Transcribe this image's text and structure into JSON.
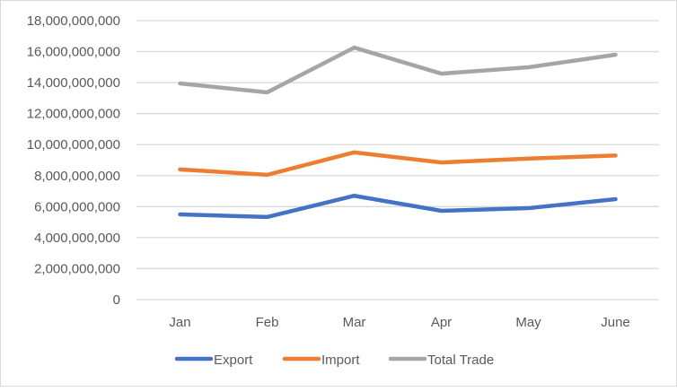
{
  "chart_data": {
    "type": "line",
    "title": "",
    "xlabel": "",
    "ylabel": "",
    "categories": [
      "Jan",
      "Feb",
      "Mar",
      "Apr",
      "May",
      "June"
    ],
    "ylim": [
      0,
      18000000000
    ],
    "yticks": [
      0,
      2000000000,
      4000000000,
      6000000000,
      8000000000,
      10000000000,
      12000000000,
      14000000000,
      16000000000,
      18000000000
    ],
    "ytick_labels": [
      "0",
      "2,000,000,000",
      "4,000,000,000",
      "6,000,000,000",
      "8,000,000,000",
      "10,000,000,000",
      "12,000,000,000",
      "14,000,000,000",
      "16,000,000,000",
      "18,000,000,000"
    ],
    "grid": true,
    "legend_position": "bottom",
    "series": [
      {
        "name": "Export",
        "color": "#4472C4",
        "values": [
          5500000000,
          5330000000,
          6700000000,
          5730000000,
          5900000000,
          6480000000
        ]
      },
      {
        "name": "Import",
        "color": "#ED7D31",
        "values": [
          8400000000,
          8050000000,
          9500000000,
          8850000000,
          9100000000,
          9300000000
        ]
      },
      {
        "name": "Total Trade",
        "color": "#A5A5A5",
        "values": [
          13950000000,
          13370000000,
          16260000000,
          14580000000,
          14990000000,
          15800000000
        ]
      }
    ]
  }
}
